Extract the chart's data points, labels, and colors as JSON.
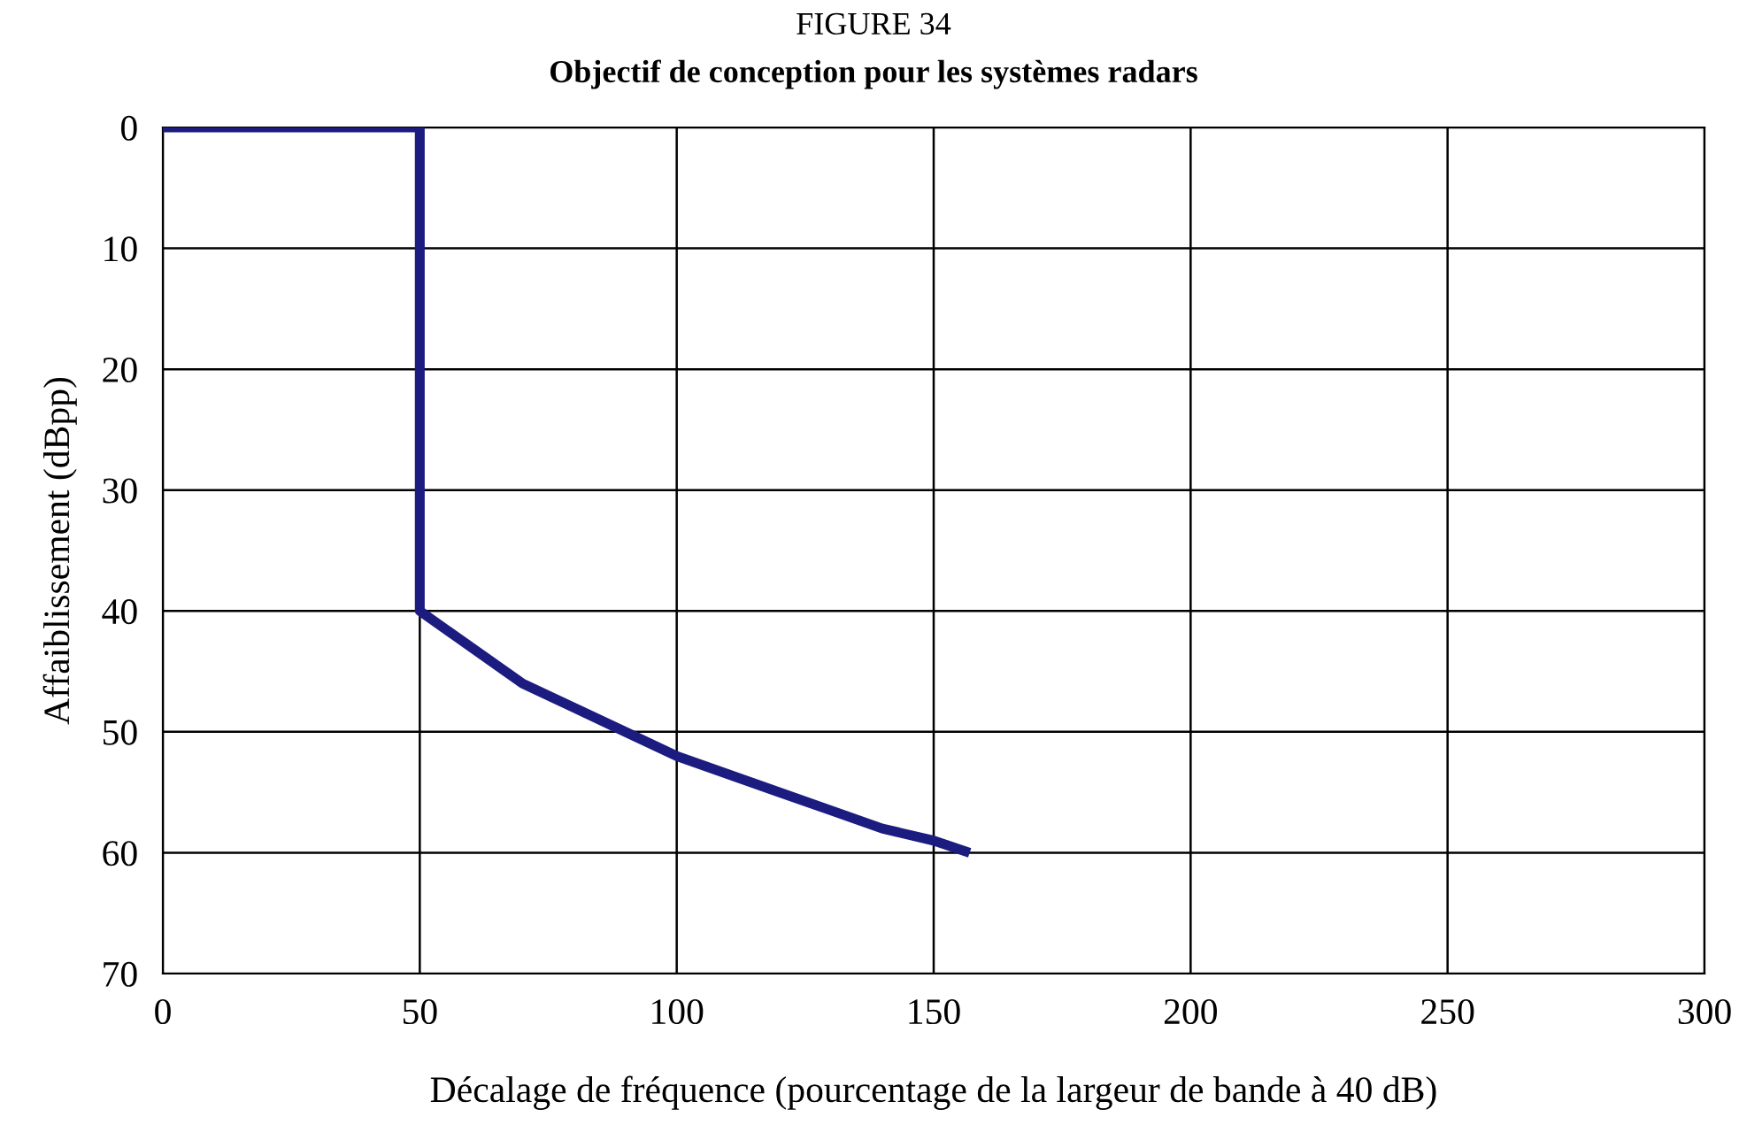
{
  "chart_data": {
    "type": "line",
    "title": "FIGURE 34",
    "subtitle": "Objectif de conception pour les systèmes radars",
    "xlabel": "Décalage de fréquence (pourcentage de la largeur de bande à 40 dB)",
    "ylabel": "Affaiblissement (dBpp)",
    "series": [
      {
        "color": "#1c1c80",
        "x": [
          0,
          50,
          50,
          60,
          70,
          80,
          90,
          100,
          110,
          120,
          130,
          140,
          150,
          157
        ],
        "values": [
          0,
          0,
          40,
          43,
          46,
          48,
          50,
          52,
          53.5,
          55,
          56.5,
          58,
          59,
          60
        ]
      }
    ],
    "xlim": [
      0,
      300
    ],
    "xticks": [
      0,
      50,
      100,
      150,
      200,
      250,
      300
    ],
    "ylim": [
      70,
      0
    ],
    "yticks": [
      0,
      10,
      20,
      30,
      40,
      50,
      60,
      70
    ],
    "grid": true,
    "line_style": "solid"
  }
}
